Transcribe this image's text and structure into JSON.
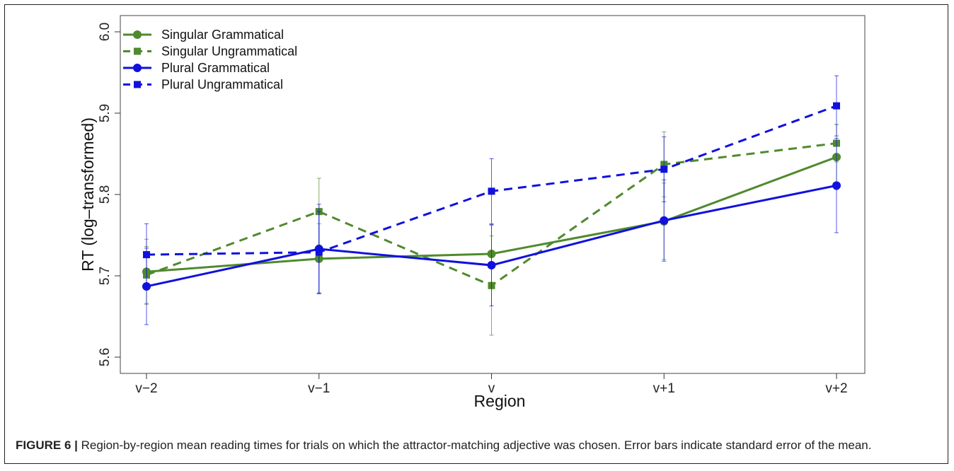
{
  "caption": {
    "label": "FIGURE 6 |",
    "text": " Region-by-region mean reading times for trials on which the attractor-matching adjective was chosen. Error bars indicate standard error of the mean."
  },
  "chart_data": {
    "type": "line",
    "title": "",
    "xlabel": "Region",
    "ylabel": "RT (log–transformed)",
    "categories": [
      "v−2",
      "v−1",
      "v",
      "v+1",
      "v+2"
    ],
    "ylim": [
      5.58,
      6.02
    ],
    "yticks": [
      5.6,
      5.7,
      5.8,
      5.9,
      6.0
    ],
    "ytick_labels": [
      "5.6",
      "5.7",
      "5.8",
      "5.9",
      "6.0"
    ],
    "grid": false,
    "legend_position": "top-left",
    "series": [
      {
        "name": "Singular Grammatical",
        "color": "#4f8a2e",
        "dash": "solid",
        "marker": "circle",
        "values": [
          5.705,
          5.721,
          5.727,
          5.767,
          5.846
        ],
        "err": [
          0.04,
          0.043,
          0.035,
          0.047,
          0.04
        ]
      },
      {
        "name": "Singular Ungrammatical",
        "color": "#4f8a2e",
        "dash": "dashed",
        "marker": "square",
        "values": [
          5.701,
          5.779,
          5.688,
          5.837,
          5.863
        ],
        "err": [
          0.035,
          0.041,
          0.061,
          0.04,
          0.023
        ]
      },
      {
        "name": "Plural Grammatical",
        "color": "#1111dd",
        "dash": "solid",
        "marker": "circle",
        "values": [
          5.687,
          5.733,
          5.713,
          5.768,
          5.811
        ],
        "err": [
          0.047,
          0.055,
          0.05,
          0.05,
          0.058
        ]
      },
      {
        "name": "Plural Ungrammatical",
        "color": "#1111dd",
        "dash": "dashed",
        "marker": "square",
        "values": [
          5.726,
          5.729,
          5.804,
          5.831,
          5.909
        ],
        "err": [
          0.038,
          0.05,
          0.04,
          0.04,
          0.037
        ]
      }
    ]
  }
}
